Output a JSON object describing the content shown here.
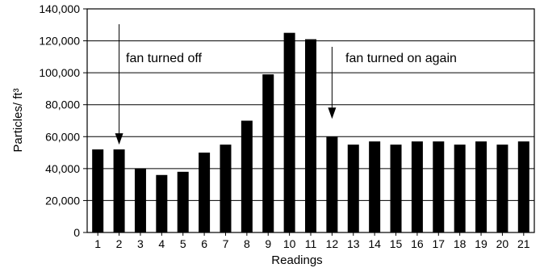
{
  "chart_data": {
    "type": "bar",
    "categories": [
      "1",
      "2",
      "3",
      "4",
      "5",
      "6",
      "7",
      "8",
      "9",
      "10",
      "11",
      "12",
      "13",
      "14",
      "15",
      "16",
      "17",
      "18",
      "19",
      "20",
      "21"
    ],
    "values": [
      52000,
      52000,
      40000,
      36000,
      38000,
      50000,
      55000,
      70000,
      99000,
      125000,
      121000,
      60000,
      55000,
      57000,
      55000,
      57000,
      57000,
      55000,
      57000,
      55000,
      57000
    ],
    "title": "",
    "xlabel": "Readings",
    "ylabel": "Particles/ ft³",
    "ylim": [
      0,
      140000
    ],
    "yticks": [
      0,
      20000,
      40000,
      60000,
      80000,
      100000,
      120000,
      140000
    ],
    "ytick_labels": [
      "0",
      "20,000",
      "40,000",
      "60,000",
      "80,000",
      "100,000",
      "120,000",
      "140,000"
    ],
    "grid": "horizontal",
    "bar_color": "#000000",
    "annotations": [
      {
        "text": "fan turned off",
        "category": "2"
      },
      {
        "text": "fan turned on again",
        "category": "12"
      }
    ]
  }
}
